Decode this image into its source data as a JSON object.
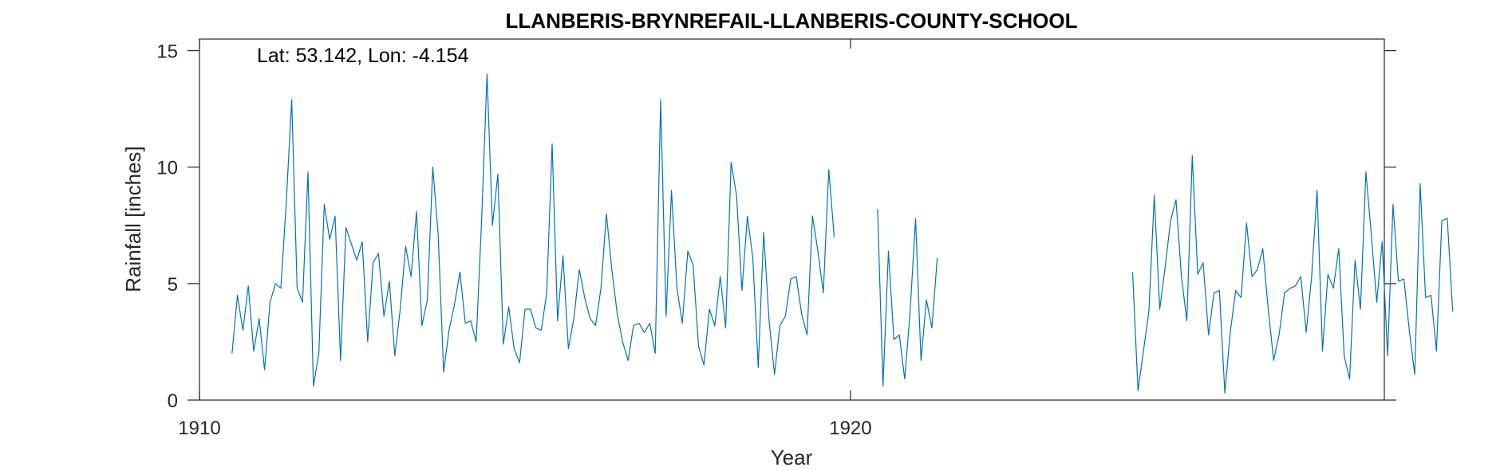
{
  "chart_data": {
    "type": "line",
    "title": "LLANBERIS-BRYNREFAIL-LLANBERIS-COUNTY-SCHOOL",
    "annotation": "Lat: 53.142, Lon: -4.154",
    "xlabel": "Year",
    "ylabel": "Rainfall [inches]",
    "xlim": [
      1910,
      1928.2
    ],
    "ylim": [
      0,
      15.5
    ],
    "xticks": [
      1910,
      1920
    ],
    "xtick_labels": [
      "1910",
      "1920"
    ],
    "yticks": [
      0,
      5,
      10,
      15
    ],
    "ytick_labels": [
      "0",
      "5",
      "10",
      "15"
    ],
    "grid": false,
    "series_color": "#0072BD",
    "series": [
      {
        "x_start": 1910.5,
        "x_step": 0.0833333,
        "values": [
          2.0,
          4.5,
          3.0,
          4.9,
          2.1,
          3.5,
          1.3,
          4.2,
          5.0,
          4.8,
          8.5,
          12.9,
          4.8,
          4.2,
          9.8,
          0.6,
          2.0,
          8.4,
          6.9,
          7.9,
          1.7,
          7.4,
          6.7,
          6.0,
          6.8,
          2.5,
          5.9,
          6.3,
          3.6,
          5.1,
          1.9,
          3.9,
          6.6,
          5.3,
          8.1,
          3.2,
          4.3,
          10.0,
          7.1,
          1.2,
          3.0,
          4.1,
          5.5,
          3.3,
          3.4,
          2.5,
          7.7,
          14.0,
          7.5,
          9.7,
          2.4,
          4.0,
          2.2,
          1.6,
          3.9,
          3.9,
          3.1,
          3.0,
          4.6,
          11.0,
          3.4,
          6.2,
          2.2,
          3.5,
          5.6,
          4.4,
          3.5,
          3.2,
          4.8,
          8.0,
          5.6,
          3.7,
          2.5,
          1.7,
          3.2,
          3.3,
          2.9,
          3.3,
          2.0,
          12.9,
          3.6,
          9.0,
          4.8,
          3.3,
          6.4,
          5.8,
          2.3,
          1.5,
          3.9,
          3.2,
          5.3,
          3.1,
          10.2,
          8.8,
          4.7,
          7.9,
          6.1,
          1.4,
          7.2,
          3.4,
          1.1,
          3.2,
          3.6,
          5.2,
          5.3,
          3.7,
          2.8,
          7.9,
          6.4,
          4.6,
          9.9,
          7.0,
          null,
          null,
          null,
          null,
          null,
          null,
          null,
          8.2,
          0.6,
          6.4,
          2.6,
          2.8,
          0.9,
          3.8,
          7.8,
          1.7,
          4.3,
          3.1,
          6.1,
          null,
          null,
          null,
          null,
          null,
          null,
          null,
          null,
          null,
          null,
          null,
          null,
          null,
          null,
          null,
          null,
          null,
          null,
          null,
          null,
          null,
          null,
          null,
          null,
          null,
          null,
          null,
          null,
          null,
          null,
          null,
          null,
          null,
          null,
          null,
          5.5,
          0.4,
          2.1,
          3.8,
          8.8,
          3.9,
          5.7,
          7.7,
          8.6,
          5.3,
          3.4,
          10.5,
          5.4,
          5.9,
          2.8,
          4.6,
          4.7,
          0.3,
          2.9,
          4.7,
          4.4,
          7.6,
          5.3,
          5.6,
          6.5,
          3.9,
          1.7,
          2.8,
          4.6,
          4.8,
          4.9,
          5.3,
          2.9,
          5.3,
          9.0,
          2.1,
          5.4,
          4.8,
          6.5,
          1.9,
          0.9,
          6.0,
          3.9,
          9.8,
          7.1,
          4.2,
          6.8,
          1.9,
          8.4,
          5.1,
          5.2,
          3.0,
          1.1,
          9.3,
          4.4,
          4.5,
          2.1,
          7.7,
          7.8,
          3.8
        ]
      }
    ]
  }
}
